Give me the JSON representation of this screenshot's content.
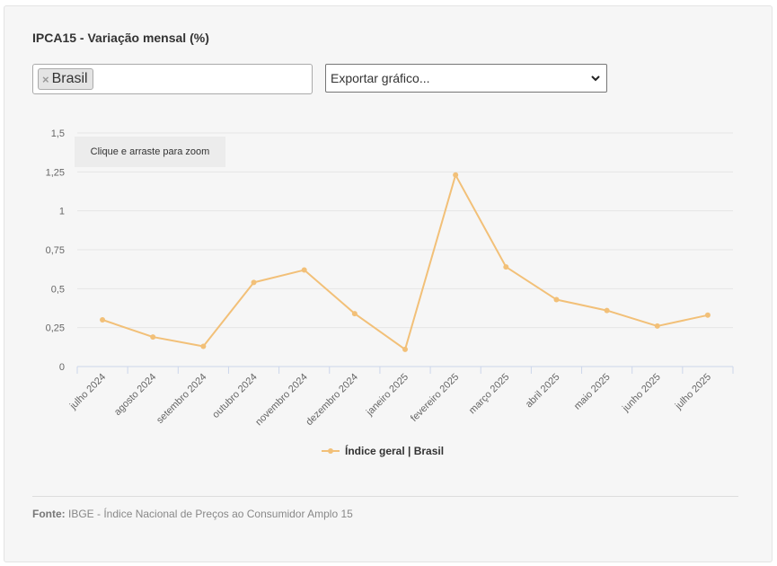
{
  "title": "IPCA15 - Variação mensal (%)",
  "filter": {
    "tag_label": "Brasil",
    "remove_symbol": "×"
  },
  "export": {
    "label": "Exportar gráfico...",
    "icon": "chevron-down-icon"
  },
  "zoom_hint": "Clique e arraste para zoom",
  "footer": {
    "source_label": "Fonte:",
    "source_text": "IBGE - Índice Nacional de Preços ao Consumidor Amplo 15"
  },
  "colors": {
    "series": "#f2c078",
    "grid": "#e6e6e6",
    "axis": "#ccd6eb",
    "text": "#666666"
  },
  "chart_data": {
    "type": "line",
    "title": "",
    "xlabel": "",
    "ylabel": "",
    "categories": [
      "julho 2024",
      "agosto 2024",
      "setembro 2024",
      "outubro 2024",
      "novembro 2024",
      "dezembro 2024",
      "janeiro 2025",
      "fevereiro 2025",
      "março 2025",
      "abril 2025",
      "maio 2025",
      "junho 2025",
      "julho 2025"
    ],
    "series": [
      {
        "name": "Índice geral | Brasil",
        "values": [
          0.3,
          0.19,
          0.13,
          0.54,
          0.62,
          0.34,
          0.11,
          1.23,
          0.64,
          0.43,
          0.36,
          0.26,
          0.33
        ]
      }
    ],
    "yticks": [
      "0",
      "0,25",
      "0,5",
      "0,75",
      "1",
      "1,25",
      "1,5"
    ],
    "ylim": [
      0,
      1.5
    ],
    "grid": true,
    "legend_position": "bottom-center"
  }
}
